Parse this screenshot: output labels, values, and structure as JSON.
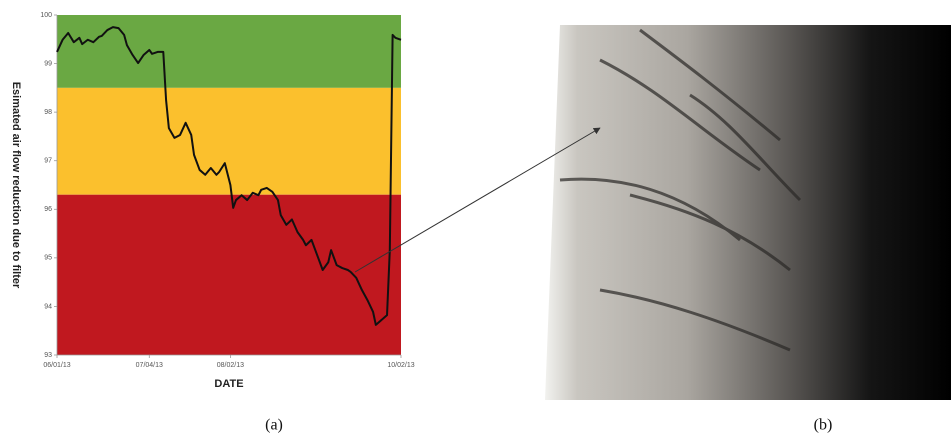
{
  "chart_data": {
    "type": "line",
    "x_label": "DATE",
    "y_label": "Esimated air flow reduction due to filter",
    "xlim": [
      "2013-06-01",
      "2013-10-02"
    ],
    "xticks": [
      {
        "value": "2013-06-01",
        "label": "06/01/13"
      },
      {
        "value": "2013-07-04",
        "label": "07/04/13"
      },
      {
        "value": "2013-08-02",
        "label": "08/02/13"
      },
      {
        "value": "2013-10-02",
        "label": "10/02/13"
      }
    ],
    "ylim": [
      93,
      100
    ],
    "yticks": [
      93,
      94,
      95,
      96,
      97,
      98,
      99,
      100
    ],
    "bands": [
      {
        "from": 98.5,
        "to": 100,
        "color": "#6aa843"
      },
      {
        "from": 96.3,
        "to": 98.5,
        "color": "#fbc02d"
      },
      {
        "from": 93,
        "to": 96.3,
        "color": "#c0181f"
      }
    ],
    "color": "#111111",
    "x": [
      "2013-06-01",
      "2013-06-03",
      "2013-06-05",
      "2013-06-07",
      "2013-06-09",
      "2013-06-10",
      "2013-06-12",
      "2013-06-14",
      "2013-06-16",
      "2013-06-17",
      "2013-06-19",
      "2013-06-21",
      "2013-06-23",
      "2013-06-25",
      "2013-06-26",
      "2013-06-28",
      "2013-06-30",
      "2013-07-02",
      "2013-07-04",
      "2013-07-05",
      "2013-07-07",
      "2013-07-09",
      "2013-07-10",
      "2013-07-11",
      "2013-07-13",
      "2013-07-15",
      "2013-07-17",
      "2013-07-19",
      "2013-07-20",
      "2013-07-22",
      "2013-07-24",
      "2013-07-26",
      "2013-07-28",
      "2013-07-29",
      "2013-07-31",
      "2013-08-02",
      "2013-08-03",
      "2013-08-04",
      "2013-08-06",
      "2013-08-08",
      "2013-08-10",
      "2013-08-12",
      "2013-08-13",
      "2013-08-15",
      "2013-08-17",
      "2013-08-19",
      "2013-08-20",
      "2013-08-22",
      "2013-08-24",
      "2013-08-26",
      "2013-08-28",
      "2013-08-29",
      "2013-08-31",
      "2013-09-02",
      "2013-09-04",
      "2013-09-06",
      "2013-09-07",
      "2013-09-09",
      "2013-09-11",
      "2013-09-13",
      "2013-09-14",
      "2013-09-16",
      "2013-09-18",
      "2013-09-20",
      "2013-09-22",
      "2013-09-23",
      "2013-09-25",
      "2013-09-27",
      "2013-09-28",
      "2013-09-29",
      "2013-09-30",
      "2013-10-02"
    ],
    "values": [
      99.24,
      99.49,
      99.63,
      99.44,
      99.53,
      99.4,
      99.49,
      99.44,
      99.55,
      99.57,
      99.69,
      99.75,
      99.73,
      99.59,
      99.38,
      99.18,
      99.01,
      99.18,
      99.28,
      99.2,
      99.24,
      99.24,
      98.25,
      97.67,
      97.47,
      97.53,
      97.78,
      97.53,
      97.12,
      96.81,
      96.71,
      96.85,
      96.71,
      96.77,
      96.95,
      96.5,
      96.03,
      96.19,
      96.29,
      96.19,
      96.34,
      96.29,
      96.4,
      96.44,
      96.36,
      96.19,
      95.88,
      95.68,
      95.79,
      95.53,
      95.37,
      95.26,
      95.37,
      95.06,
      94.75,
      94.91,
      95.16,
      94.85,
      94.79,
      94.75,
      94.71,
      94.59,
      94.34,
      94.13,
      93.89,
      93.62,
      93.72,
      93.82,
      95.16,
      99.59,
      99.53,
      99.49
    ]
  },
  "captions": [
    "(a)",
    "(b)"
  ]
}
